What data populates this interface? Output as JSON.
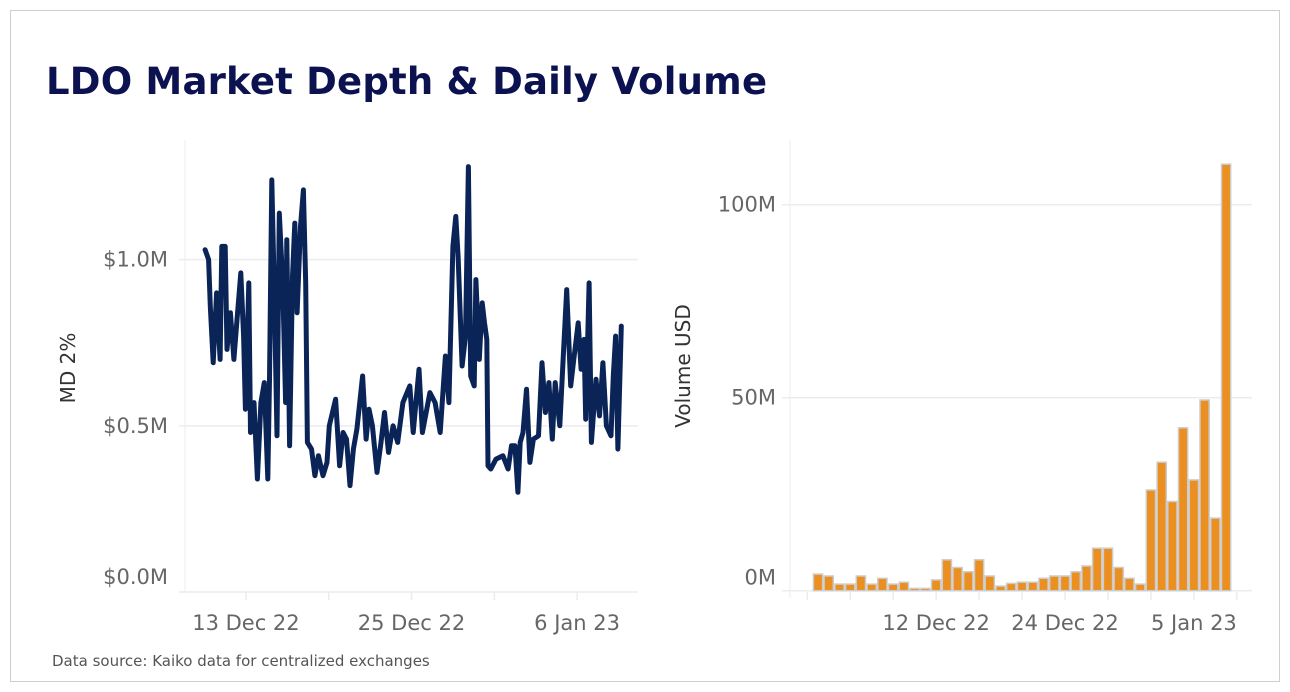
{
  "title": "LDO Market Depth & Daily Volume",
  "source": "Data source: Kaiko data for centralized exchanges",
  "colors": {
    "line": "#0a2458",
    "bar": "#ea8f20",
    "bar_outline": "#cccccc",
    "grid": "#ececec",
    "title": "#0c1150"
  },
  "chart_data": [
    {
      "type": "line",
      "ylabel": "MD 2%",
      "xlabel": "",
      "ylim": [
        0,
        1.36
      ],
      "xlim": [
        "2022-12-08 14:00",
        "2023-01-10 10:00"
      ],
      "yticks": [
        {
          "value": 0,
          "label": "$0.0M"
        },
        {
          "value": 0.5,
          "label": "$0.5M"
        },
        {
          "value": 1.0,
          "label": "$1.0M"
        }
      ],
      "xticks": [
        {
          "date": "2022-12-13 00:00",
          "label": "13 Dec 22"
        },
        {
          "date": "2022-12-19 00:00",
          "label": ""
        },
        {
          "date": "2022-12-25 00:00",
          "label": "25 Dec 22"
        },
        {
          "date": "2022-12-31 00:00",
          "label": ""
        },
        {
          "date": "2023-01-06 00:00",
          "label": "6 Jan 23"
        }
      ],
      "grid": true,
      "unit": "USD millions",
      "points": [
        [
          "2022-12-10 01:00",
          1.03
        ],
        [
          "2022-12-10 07:00",
          1.0
        ],
        [
          "2022-12-10 10:00",
          0.86
        ],
        [
          "2022-12-10 15:00",
          0.69
        ],
        [
          "2022-12-10 21:00",
          0.9
        ],
        [
          "2022-12-11 03:00",
          0.7
        ],
        [
          "2022-12-11 06:00",
          1.04
        ],
        [
          "2022-12-11 12:00",
          1.04
        ],
        [
          "2022-12-11 15:00",
          0.73
        ],
        [
          "2022-12-11 21:00",
          0.84
        ],
        [
          "2022-12-12 03:00",
          0.7
        ],
        [
          "2022-12-12 09:00",
          0.83
        ],
        [
          "2022-12-12 15:00",
          0.96
        ],
        [
          "2022-12-12 20:00",
          0.77
        ],
        [
          "2022-12-12 23:00",
          0.55
        ],
        [
          "2022-12-13 05:00",
          0.93
        ],
        [
          "2022-12-13 08:00",
          0.48
        ],
        [
          "2022-12-13 14:00",
          0.57
        ],
        [
          "2022-12-13 20:00",
          0.34
        ],
        [
          "2022-12-14 02:00",
          0.57
        ],
        [
          "2022-12-14 08:00",
          0.63
        ],
        [
          "2022-12-14 14:00",
          0.34
        ],
        [
          "2022-12-14 17:00",
          0.64
        ],
        [
          "2022-12-14 21:00",
          1.24
        ],
        [
          "2022-12-15 01:00",
          0.93
        ],
        [
          "2022-12-15 06:00",
          0.47
        ],
        [
          "2022-12-15 10:00",
          1.14
        ],
        [
          "2022-12-15 16:00",
          0.93
        ],
        [
          "2022-12-15 21:00",
          0.57
        ],
        [
          "2022-12-15 23:00",
          1.06
        ],
        [
          "2022-12-16 04:00",
          0.44
        ],
        [
          "2022-12-16 09:00",
          0.95
        ],
        [
          "2022-12-16 13:00",
          1.11
        ],
        [
          "2022-12-16 17:00",
          0.84
        ],
        [
          "2022-12-16 23:00",
          1.1
        ],
        [
          "2022-12-17 04:00",
          1.21
        ],
        [
          "2022-12-17 08:00",
          0.93
        ],
        [
          "2022-12-17 11:00",
          0.45
        ],
        [
          "2022-12-17 18:00",
          0.43
        ],
        [
          "2022-12-18 00:00",
          0.35
        ],
        [
          "2022-12-18 06:00",
          0.41
        ],
        [
          "2022-12-18 14:00",
          0.35
        ],
        [
          "2022-12-18 21:00",
          0.39
        ],
        [
          "2022-12-19 01:00",
          0.5
        ],
        [
          "2022-12-19 12:00",
          0.58
        ],
        [
          "2022-12-19 19:00",
          0.38
        ],
        [
          "2022-12-20 01:00",
          0.48
        ],
        [
          "2022-12-20 07:00",
          0.46
        ],
        [
          "2022-12-20 13:00",
          0.32
        ],
        [
          "2022-12-20 19:00",
          0.43
        ],
        [
          "2022-12-21 01:00",
          0.49
        ],
        [
          "2022-12-21 11:00",
          0.65
        ],
        [
          "2022-12-21 17:00",
          0.46
        ],
        [
          "2022-12-21 22:00",
          0.55
        ],
        [
          "2022-12-22 04:00",
          0.5
        ],
        [
          "2022-12-22 12:00",
          0.36
        ],
        [
          "2022-12-22 19:00",
          0.45
        ],
        [
          "2022-12-23 01:00",
          0.54
        ],
        [
          "2022-12-23 08:00",
          0.42
        ],
        [
          "2022-12-23 16:00",
          0.5
        ],
        [
          "2022-12-24 00:00",
          0.45
        ],
        [
          "2022-12-24 09:00",
          0.57
        ],
        [
          "2022-12-24 21:00",
          0.62
        ],
        [
          "2022-12-25 03:00",
          0.48
        ],
        [
          "2022-12-25 13:00",
          0.67
        ],
        [
          "2022-12-25 19:00",
          0.48
        ],
        [
          "2022-12-26 08:00",
          0.6
        ],
        [
          "2022-12-26 17:00",
          0.57
        ],
        [
          "2022-12-27 02:00",
          0.48
        ],
        [
          "2022-12-27 11:00",
          0.71
        ],
        [
          "2022-12-27 17:00",
          0.57
        ],
        [
          "2022-12-28 00:00",
          1.04
        ],
        [
          "2022-12-28 05:00",
          1.13
        ],
        [
          "2022-12-28 09:00",
          1.01
        ],
        [
          "2022-12-28 16:00",
          0.68
        ],
        [
          "2022-12-28 22:00",
          0.77
        ],
        [
          "2022-12-29 03:00",
          1.28
        ],
        [
          "2022-12-29 07:00",
          0.65
        ],
        [
          "2022-12-29 13:00",
          0.62
        ],
        [
          "2022-12-29 16:00",
          0.94
        ],
        [
          "2022-12-29 22:00",
          0.7
        ],
        [
          "2022-12-30 03:00",
          0.87
        ],
        [
          "2022-12-30 07:00",
          0.81
        ],
        [
          "2022-12-30 11:00",
          0.76
        ],
        [
          "2022-12-30 13:00",
          0.38
        ],
        [
          "2022-12-30 18:00",
          0.37
        ],
        [
          "2022-12-31 03:00",
          0.4
        ],
        [
          "2022-12-31 15:00",
          0.41
        ],
        [
          "2023-01-01 00:00",
          0.37
        ],
        [
          "2023-01-01 06:00",
          0.44
        ],
        [
          "2023-01-01 12:00",
          0.44
        ],
        [
          "2023-01-01 17:00",
          0.3
        ],
        [
          "2023-01-01 21:00",
          0.45
        ],
        [
          "2023-01-02 02:00",
          0.48
        ],
        [
          "2023-01-02 08:00",
          0.61
        ],
        [
          "2023-01-02 14:00",
          0.39
        ],
        [
          "2023-01-02 20:00",
          0.46
        ],
        [
          "2023-01-03 05:00",
          0.47
        ],
        [
          "2023-01-03 11:00",
          0.69
        ],
        [
          "2023-01-03 17:00",
          0.54
        ],
        [
          "2023-01-03 23:00",
          0.63
        ],
        [
          "2023-01-04 05:00",
          0.46
        ],
        [
          "2023-01-04 10:00",
          0.63
        ],
        [
          "2023-01-04 18:00",
          0.5
        ],
        [
          "2023-01-05 00:00",
          0.71
        ],
        [
          "2023-01-05 06:00",
          0.91
        ],
        [
          "2023-01-05 13:00",
          0.62
        ],
        [
          "2023-01-05 19:00",
          0.71
        ],
        [
          "2023-01-06 02:00",
          0.81
        ],
        [
          "2023-01-06 07:00",
          0.67
        ],
        [
          "2023-01-06 12:00",
          0.76
        ],
        [
          "2023-01-06 15:00",
          0.52
        ],
        [
          "2023-01-06 21:00",
          0.93
        ],
        [
          "2023-01-07 01:00",
          0.45
        ],
        [
          "2023-01-07 09:00",
          0.64
        ],
        [
          "2023-01-07 15:00",
          0.53
        ],
        [
          "2023-01-07 21:00",
          0.69
        ],
        [
          "2023-01-08 03:00",
          0.5
        ],
        [
          "2023-01-08 11:00",
          0.47
        ],
        [
          "2023-01-08 15:00",
          0.65
        ],
        [
          "2023-01-08 19:00",
          0.77
        ],
        [
          "2023-01-08 23:00",
          0.43
        ],
        [
          "2023-01-09 05:00",
          0.8
        ]
      ]
    },
    {
      "type": "bar",
      "ylabel": "Volume USD",
      "xlabel": "",
      "ylim": [
        -3,
        116
      ],
      "unit": "USD millions",
      "yticks": [
        {
          "value": 0,
          "label": "0M"
        },
        {
          "value": 50,
          "label": "50M"
        },
        {
          "value": 100,
          "label": "100M"
        }
      ],
      "xticks": [
        {
          "date": "2022-11-30",
          "label": ""
        },
        {
          "date": "2022-12-04",
          "label": ""
        },
        {
          "date": "2022-12-08",
          "label": ""
        },
        {
          "date": "2022-12-12",
          "label": "12 Dec 22"
        },
        {
          "date": "2022-12-16",
          "label": ""
        },
        {
          "date": "2022-12-20",
          "label": ""
        },
        {
          "date": "2022-12-24",
          "label": "24 Dec 22"
        },
        {
          "date": "2022-12-28",
          "label": ""
        },
        {
          "date": "2023-01-01",
          "label": ""
        },
        {
          "date": "2023-01-05",
          "label": "5 Jan 23"
        },
        {
          "date": "2023-01-09",
          "label": ""
        }
      ],
      "grid": true,
      "categories": [
        "2022-12-01",
        "2022-12-02",
        "2022-12-03",
        "2022-12-04",
        "2022-12-05",
        "2022-12-06",
        "2022-12-07",
        "2022-12-08",
        "2022-12-09",
        "2022-12-10",
        "2022-12-11",
        "2022-12-12",
        "2022-12-13",
        "2022-12-14",
        "2022-12-15",
        "2022-12-16",
        "2022-12-17",
        "2022-12-18",
        "2022-12-19",
        "2022-12-20",
        "2022-12-21",
        "2022-12-22",
        "2022-12-23",
        "2022-12-24",
        "2022-12-25",
        "2022-12-26",
        "2022-12-27",
        "2022-12-28",
        "2022-12-29",
        "2022-12-30",
        "2022-12-31",
        "2023-01-01",
        "2023-01-02",
        "2023-01-03",
        "2023-01-04",
        "2023-01-05",
        "2023-01-06",
        "2023-01-07",
        "2023-01-08"
      ],
      "values": [
        4.3,
        3.8,
        1.7,
        1.7,
        3.8,
        1.7,
        3.2,
        1.7,
        2.2,
        0.6,
        0.6,
        2.8,
        8.0,
        6.0,
        4.9,
        8.0,
        3.8,
        1.2,
        1.9,
        2.2,
        2.2,
        3.2,
        3.8,
        3.8,
        4.9,
        6.4,
        11.0,
        11.0,
        6.0,
        3.2,
        1.7,
        26.1,
        33.3,
        23.1,
        42.2,
        28.7,
        49.4,
        18.8,
        110.5
      ]
    }
  ]
}
